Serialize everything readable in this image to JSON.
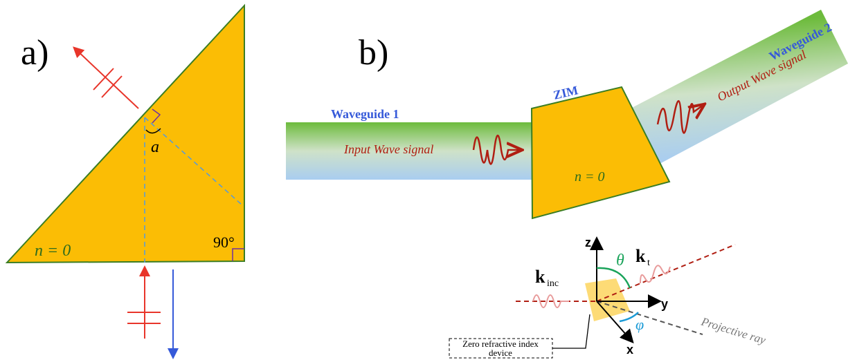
{
  "panel_a": {
    "label": "a)",
    "medium_label": "n = 0",
    "right_angle_label": "90°",
    "angle_label": "a"
  },
  "panel_b": {
    "label": "b)",
    "waveguide_1": "Waveguide 1",
    "waveguide_2": "Waveguide 2",
    "zim_label": "ZIM",
    "input_signal": "Input Wave signal",
    "output_signal": "Output Wave signal",
    "medium_label": "n = 0"
  },
  "inset": {
    "axes": {
      "z": "z",
      "y": "y",
      "x": "x"
    },
    "theta": "θ",
    "phi": "φ",
    "k_inc": {
      "symbol": "k",
      "subscript": "inc"
    },
    "k_t": {
      "symbol": "k",
      "subscript": "t"
    },
    "device_label": [
      "Zero refractive index",
      "device"
    ],
    "projective_ray": "Projective ray"
  }
}
